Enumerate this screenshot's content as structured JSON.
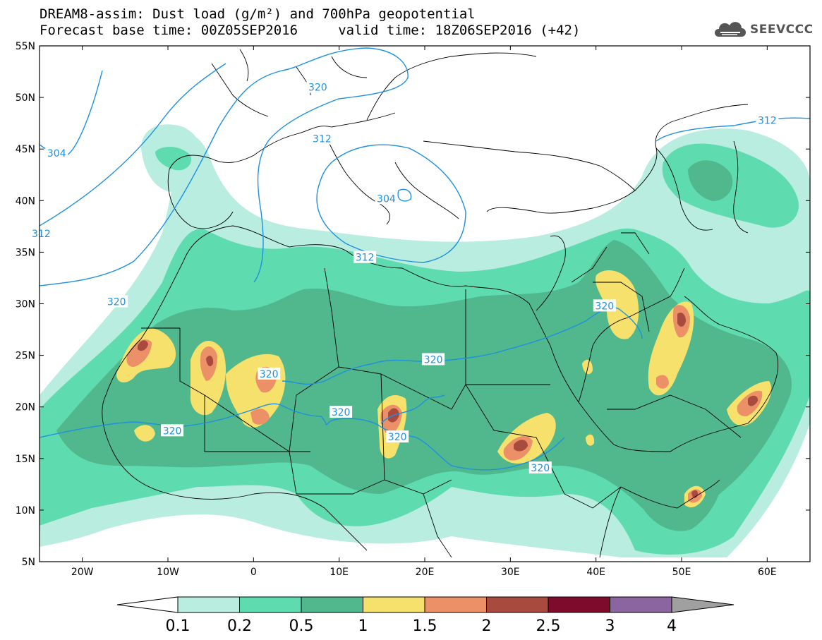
{
  "header": {
    "line1": "DREAM8-assim: Dust load (g/m²) and 700hPa geopotential",
    "line2": "Forecast base time: 00Z05SEP2016     valid time: 18Z06SEP2016 (+42)"
  },
  "logo": {
    "text": "SEEVCCC",
    "icon": "cloud-icon",
    "color": "#555555"
  },
  "map": {
    "lon_range": [
      -25,
      65
    ],
    "lat_range": [
      5,
      55
    ],
    "lon_ticks": [
      {
        "value": -20,
        "label": "20W"
      },
      {
        "value": -10,
        "label": "10W"
      },
      {
        "value": 0,
        "label": "0"
      },
      {
        "value": 10,
        "label": "10E"
      },
      {
        "value": 20,
        "label": "20E"
      },
      {
        "value": 30,
        "label": "30E"
      },
      {
        "value": 40,
        "label": "40E"
      },
      {
        "value": 50,
        "label": "50E"
      },
      {
        "value": 60,
        "label": "60E"
      }
    ],
    "lat_ticks": [
      {
        "value": 55,
        "label": "55N"
      },
      {
        "value": 50,
        "label": "50N"
      },
      {
        "value": 45,
        "label": "45N"
      },
      {
        "value": 40,
        "label": "40N"
      },
      {
        "value": 35,
        "label": "35N"
      },
      {
        "value": 30,
        "label": "30N"
      },
      {
        "value": 25,
        "label": "25N"
      },
      {
        "value": 20,
        "label": "20N"
      },
      {
        "value": 15,
        "label": "15N"
      },
      {
        "value": 10,
        "label": "10N"
      },
      {
        "value": 5,
        "label": "5N"
      }
    ],
    "contour_color": "#1e90e0",
    "contour_labels": [
      {
        "text": "304",
        "lon": -23,
        "lat": 44.6
      },
      {
        "text": "312",
        "lon": -24.8,
        "lat": 36.8
      },
      {
        "text": "320",
        "lon": -16,
        "lat": 30.2
      },
      {
        "text": "320",
        "lon": 7.5,
        "lat": 51
      },
      {
        "text": "312",
        "lon": 8,
        "lat": 46
      },
      {
        "text": "304",
        "lon": 15.5,
        "lat": 40.2
      },
      {
        "text": "312",
        "lon": 13,
        "lat": 34.5
      },
      {
        "text": "312",
        "lon": 60,
        "lat": 47.8
      },
      {
        "text": "320",
        "lon": 41,
        "lat": 29.8
      },
      {
        "text": "320",
        "lon": 1.8,
        "lat": 23.2
      },
      {
        "text": "320",
        "lon": 10.2,
        "lat": 19.5
      },
      {
        "text": "320",
        "lon": -9.5,
        "lat": 17.7
      },
      {
        "text": "320",
        "lon": 16.8,
        "lat": 17.1
      },
      {
        "text": "320",
        "lon": 21,
        "lat": 24.6
      },
      {
        "text": "320",
        "lon": 33.5,
        "lat": 14.1
      }
    ]
  },
  "legend": {
    "levels": [
      "0.1",
      "0.2",
      "0.5",
      "1",
      "1.5",
      "2",
      "2.5",
      "3",
      "4"
    ],
    "colors": [
      "#b8ede0",
      "#5fdbb0",
      "#50b88c",
      "#f5e16b",
      "#ec9068",
      "#a84a3e",
      "#7e0a2c",
      "#8b65a0"
    ],
    "under_color": "#ffffff",
    "over_color": "#a0a0a0"
  },
  "dust_fill_colors": {
    "c1": "#b8ede0",
    "c2": "#5fdbb0",
    "c3": "#50b88c",
    "c4": "#f5e16b",
    "c5": "#ec9068",
    "c6": "#a84a3e"
  }
}
